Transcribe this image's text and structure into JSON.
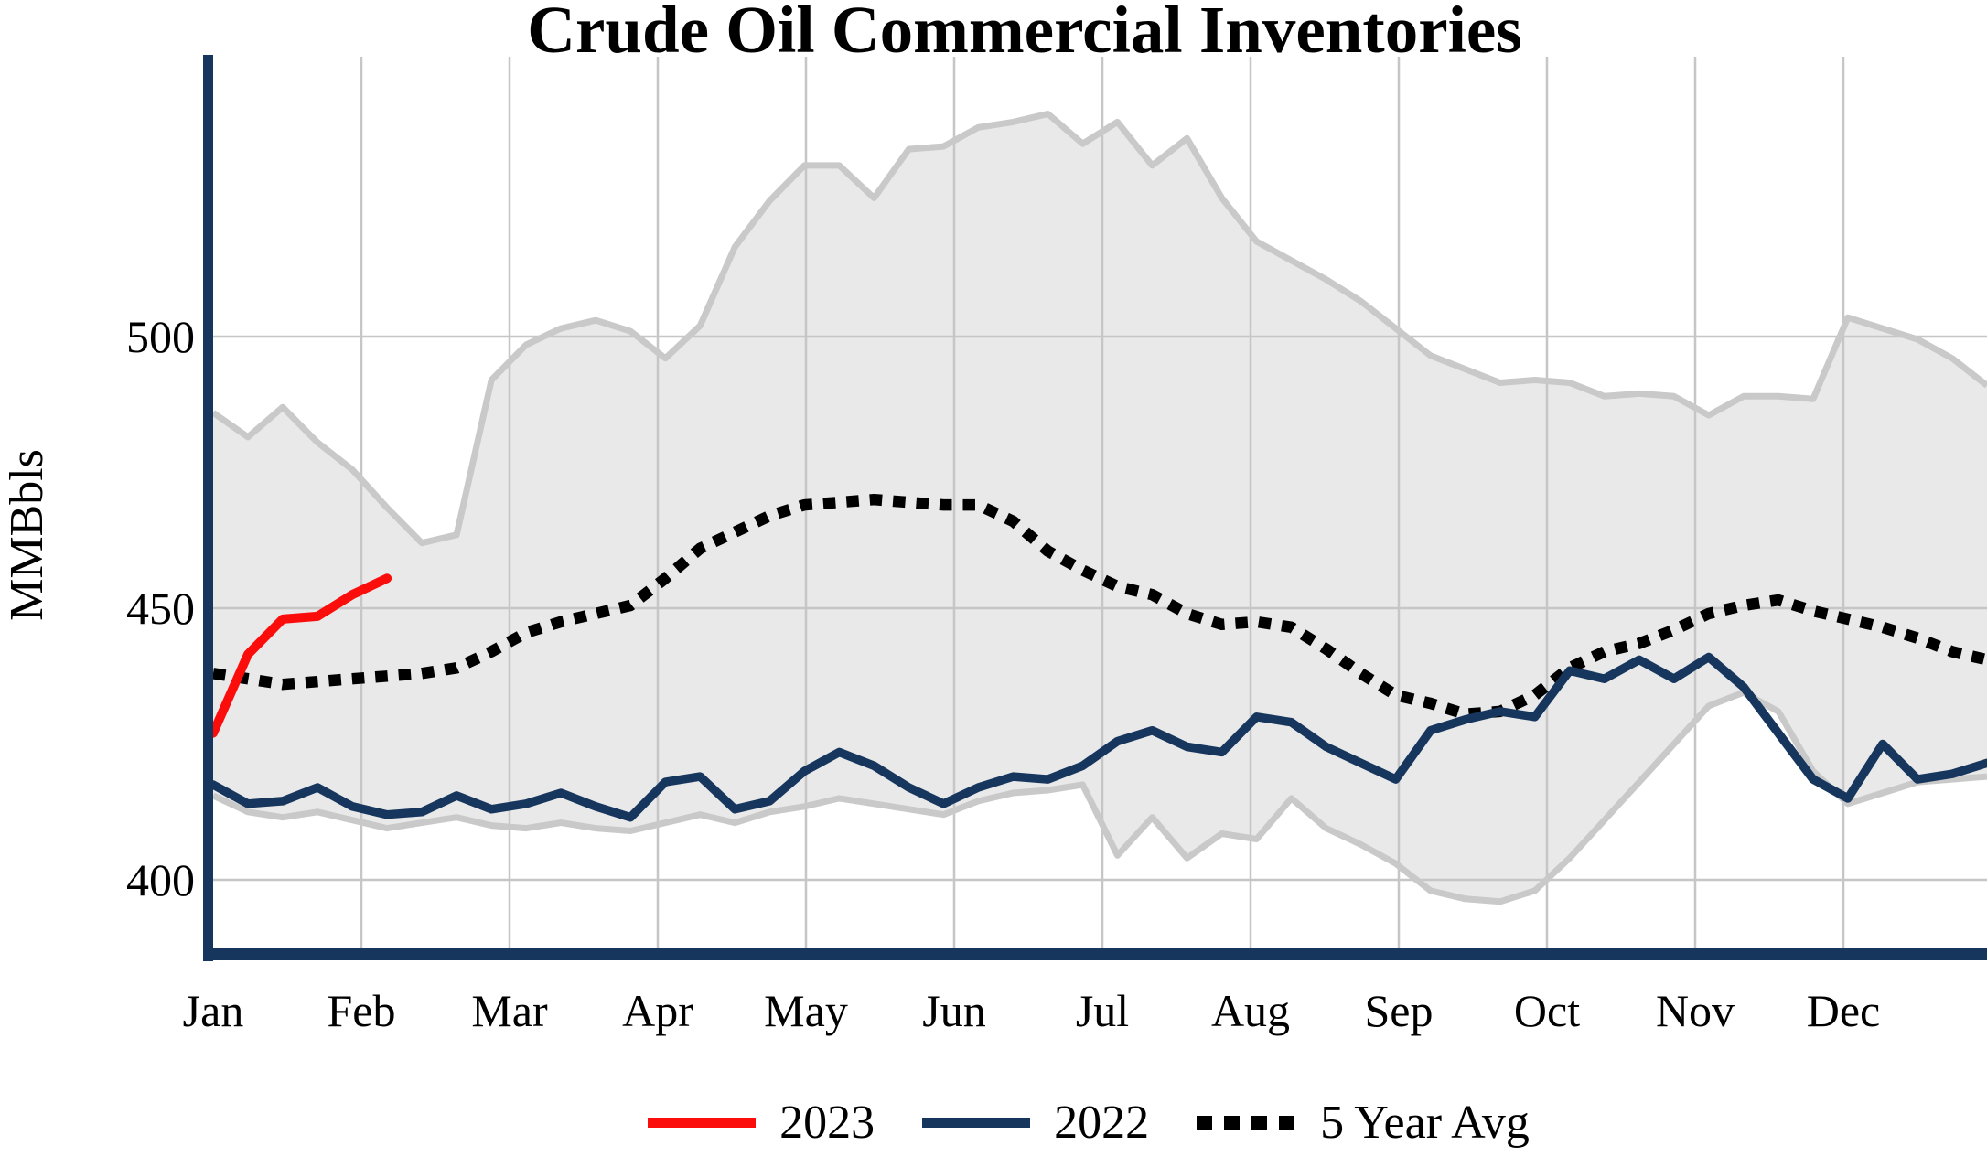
{
  "chart_data": {
    "type": "line",
    "title": "Crude Oil Commercial Inventories",
    "ylabel": "MMBbls",
    "xlabel": "",
    "y_tick_labels": [
      "500",
      "450",
      "400"
    ],
    "y_tick_values": [
      500,
      450,
      400
    ],
    "ylim": [
      386,
      549
    ],
    "grid": "on",
    "legend_position": "bottom",
    "months": [
      "Jan",
      "Feb",
      "Mar",
      "Apr",
      "May",
      "Jun",
      "Jul",
      "Aug",
      "Sep",
      "Oct",
      "Nov",
      "Dec"
    ],
    "x_unit": "weeks",
    "weeks_per_year": 52,
    "band": {
      "fill_color": "#e9e9e9",
      "edge_color": "#c9c9c9",
      "upper": [
        486,
        481.5,
        487,
        480.5,
        475.5,
        468.5,
        462,
        463.5,
        492,
        498.5,
        501.5,
        503,
        501,
        496,
        502,
        516.5,
        525,
        531.5,
        531.5,
        525.5,
        534.5,
        535,
        538.5,
        539.5,
        541,
        535.5,
        539.5,
        531.5,
        536.5,
        525.5,
        517.5,
        514,
        510.5,
        506.5,
        501.5,
        496.5,
        494,
        491.5,
        492,
        491.5,
        489,
        489.5,
        489,
        485.5,
        489,
        489,
        488.5,
        503.5,
        501.5,
        499.5,
        496,
        491
      ],
      "lower": [
        415.5,
        412.5,
        411.5,
        412.5,
        411,
        409.5,
        410.5,
        411.5,
        410,
        409.5,
        410.5,
        409.5,
        409,
        410.5,
        412,
        410.5,
        412.5,
        413.5,
        415,
        414,
        413,
        412,
        414.5,
        416,
        416.5,
        417.5,
        404.5,
        411.5,
        404,
        408.5,
        407.5,
        415,
        409.5,
        406.5,
        403,
        398,
        396.5,
        396,
        398,
        404,
        411,
        418,
        425,
        432,
        434.5,
        431,
        420,
        414,
        416,
        418,
        418.5,
        419
      ]
    },
    "series": [
      {
        "name": "2023",
        "color": "#fb0d0c",
        "style": "solid",
        "values": [
          427,
          441.5,
          448,
          448.5,
          452.5,
          455.5
        ]
      },
      {
        "name": "2022",
        "color": "#17365d",
        "style": "solid",
        "values": [
          417.5,
          414,
          414.5,
          417,
          413.5,
          412,
          412.5,
          415.5,
          413,
          414,
          416,
          413.5,
          411.5,
          418,
          419,
          413,
          414.5,
          420,
          423.5,
          421,
          417,
          414,
          417,
          419,
          418.5,
          421,
          425.5,
          427.5,
          424.5,
          423.5,
          430,
          429,
          424.5,
          421.5,
          418.5,
          427.5,
          429.5,
          431,
          430,
          438.5,
          437,
          440.5,
          437,
          441,
          435.5,
          427,
          418.5,
          415,
          425,
          418.5,
          419.5,
          421.5
        ]
      },
      {
        "name": "5 Year Avg",
        "color": "#000000",
        "style": "dashed",
        "values": [
          438,
          437,
          436,
          436.5,
          437,
          437.5,
          438,
          439,
          442,
          445.5,
          447.5,
          449,
          450.5,
          455.5,
          461,
          464,
          467,
          469,
          469.5,
          470,
          469.5,
          469,
          469,
          466,
          460.5,
          457,
          454,
          452.5,
          449,
          447,
          447.5,
          446.5,
          442.5,
          438,
          434,
          432.5,
          430.5,
          431,
          434,
          439,
          442,
          443.5,
          446,
          449,
          450.5,
          451.5,
          449.5,
          448,
          446.5,
          444.5,
          442,
          440.5
        ]
      }
    ],
    "colors": {
      "axis": "#17365d",
      "gridline": "#c6c6c6",
      "background": "#ffffff",
      "title": "#000000"
    }
  }
}
